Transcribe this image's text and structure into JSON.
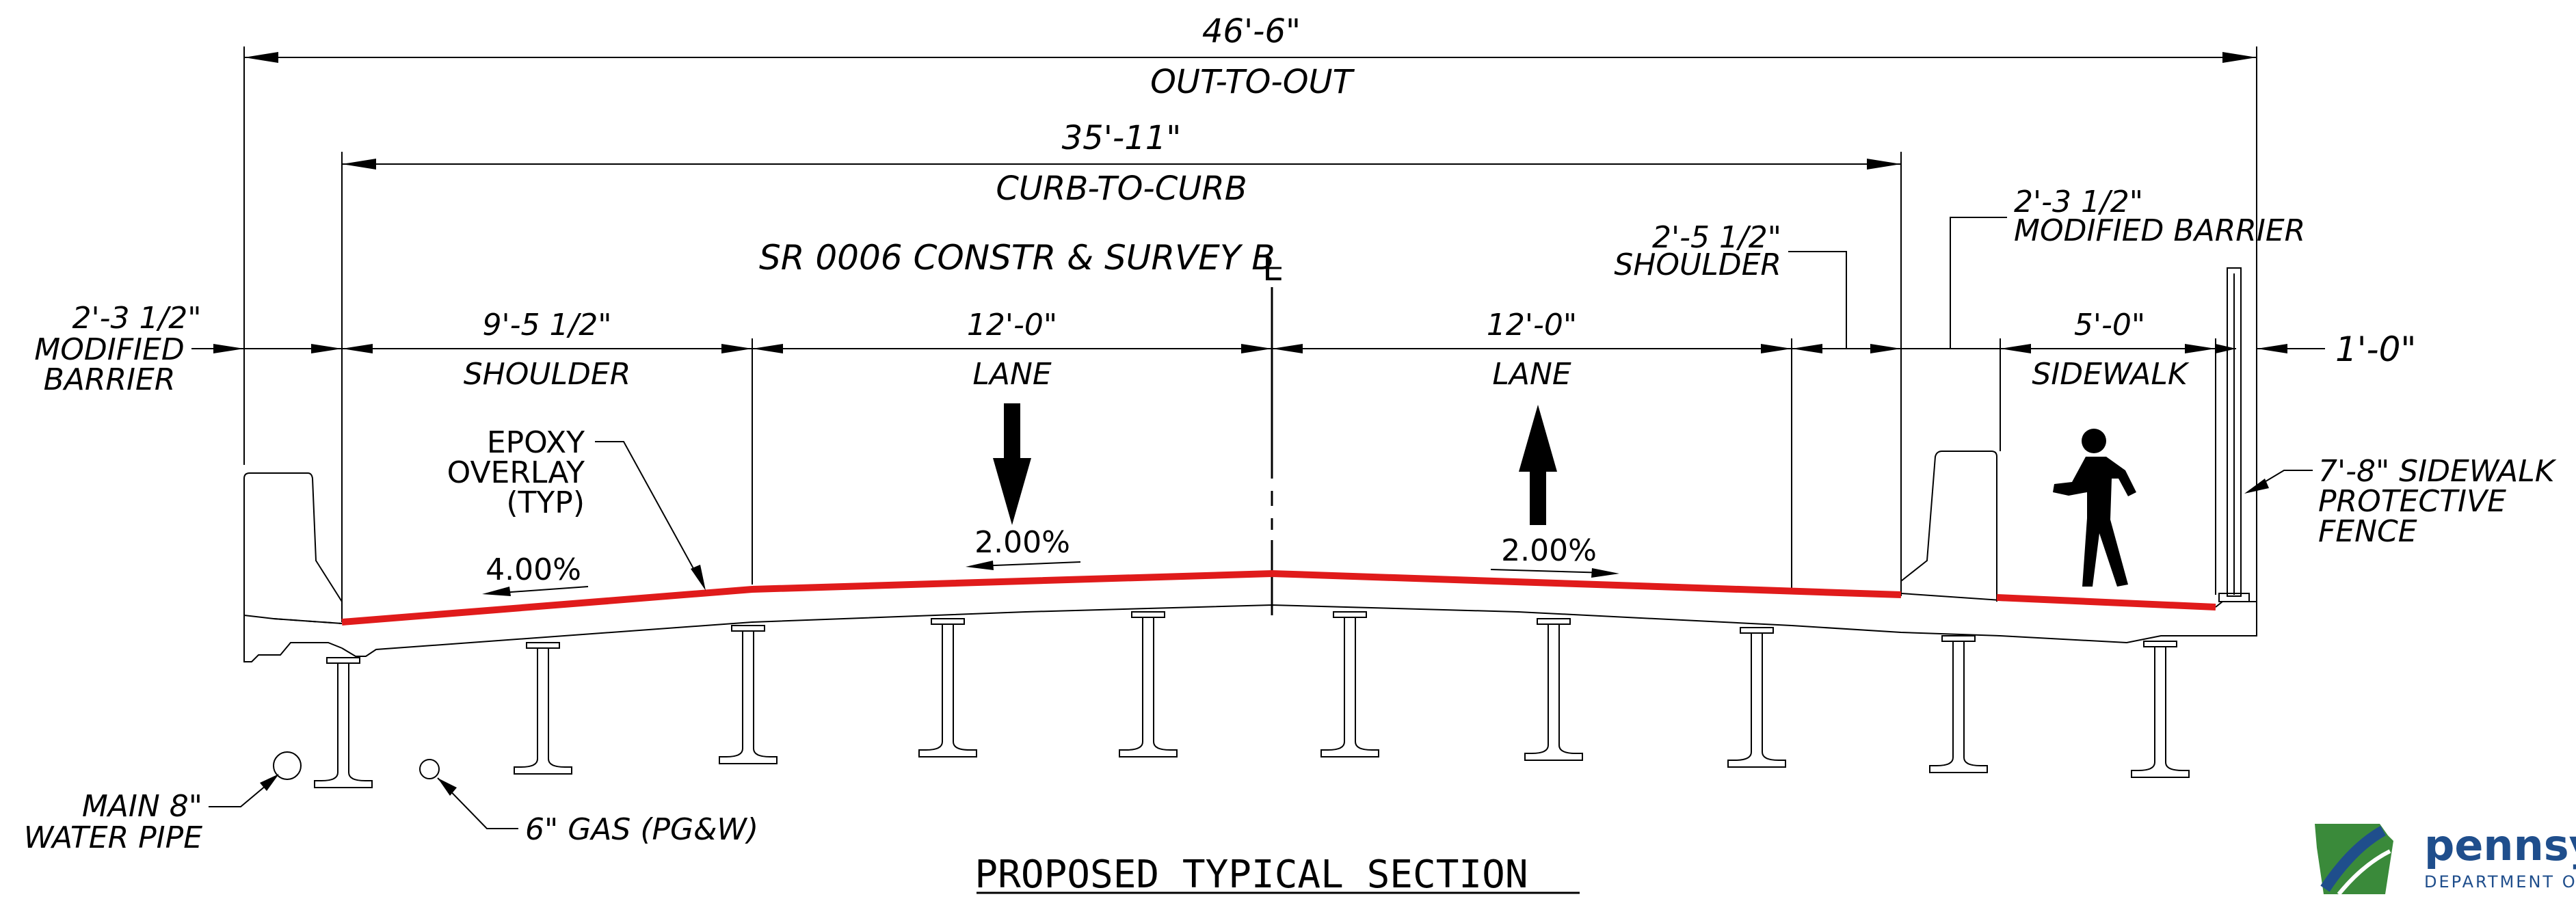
{
  "dimensions": {
    "out_to_out": {
      "value": "46'-6\"",
      "label": "OUT-TO-OUT"
    },
    "curb_to_curb": {
      "value": "35'-11\"",
      "label": "CURB-TO-CURB"
    },
    "left_barrier": {
      "line1": "2'-3 1/2\"",
      "line2": "MODIFIED",
      "line3": "BARRIER"
    },
    "left_shoulder": {
      "value": "9'-5 1/2\"",
      "label": "SHOULDER"
    },
    "left_lane": {
      "value": "12'-0\"",
      "label": "LANE"
    },
    "right_lane": {
      "value": "12'-0\"",
      "label": "LANE"
    },
    "right_shoulder": {
      "line1": "2'-5 1/2\"",
      "line2": "SHOULDER"
    },
    "right_barrier": {
      "line1": "2'-3 1/2\"",
      "line2": "MODIFIED BARRIER"
    },
    "sidewalk": {
      "value": "5'-0\"",
      "label": "SIDEWALK"
    },
    "fence_width": {
      "value": "1'-0\""
    }
  },
  "survey_line": "SR 0006 CONSTR & SURVEY B",
  "centerline_mark": "L",
  "slopes": {
    "left_shoulder": "4.00%",
    "left_lane": "2.00%",
    "right_lane": "2.00%"
  },
  "callouts": {
    "epoxy": {
      "line1": "EPOXY",
      "line2": "OVERLAY",
      "line3": "(TYP)"
    },
    "fence": {
      "line1": "7'-8\" SIDEWALK",
      "line2": "PROTECTIVE",
      "line3": "FENCE"
    },
    "water": {
      "line1": "MAIN 8\"",
      "line2": "WATER PIPE"
    },
    "gas": {
      "line1": "6\" GAS (PG&W)"
    }
  },
  "title": "PROPOSED TYPICAL SECTION",
  "logo": {
    "name": "pennsy",
    "subtitle": "DEPARTMENT O"
  },
  "colors": {
    "overlay": "#e01b1b",
    "logo_green": "#3a8a3a",
    "logo_blue": "#1f4e8c"
  }
}
